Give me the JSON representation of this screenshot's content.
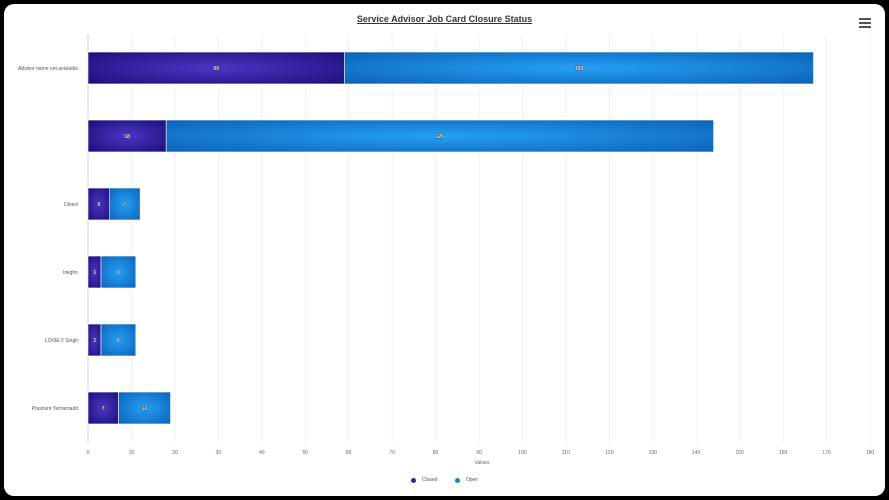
{
  "chart_data": {
    "type": "bar",
    "orientation": "horizontal",
    "stacked": true,
    "title": "Service Advisor Job Card Closure Status",
    "xlabel": "Values",
    "categories": [
      "Advisor name not available",
      "",
      "Dinesl",
      "Inkghn",
      "LOVELY Singh",
      "Prashsnt Yemarnadd"
    ],
    "series": [
      {
        "name": "Closed",
        "values": [
          59,
          18,
          5,
          3,
          3,
          7
        ],
        "color": "#3c1fa0"
      },
      {
        "name": "Open",
        "values": [
          108,
          126,
          7,
          8,
          8,
          12
        ],
        "color": "#1a7fd6"
      }
    ],
    "data_labels": {
      "Closed": [
        "59",
        "18",
        "5",
        "3",
        "3",
        "7"
      ],
      "Open": [
        "108",
        "126",
        "7",
        "8",
        "8",
        "12"
      ]
    },
    "xlim": [
      0,
      180
    ],
    "xticks": [
      0,
      10,
      20,
      30,
      40,
      50,
      60,
      70,
      80,
      90,
      100,
      110,
      120,
      130,
      140,
      150,
      160,
      170,
      180
    ],
    "grid": true,
    "legend_position": "bottom-center"
  },
  "menu_icon": "hamburger-menu-icon"
}
